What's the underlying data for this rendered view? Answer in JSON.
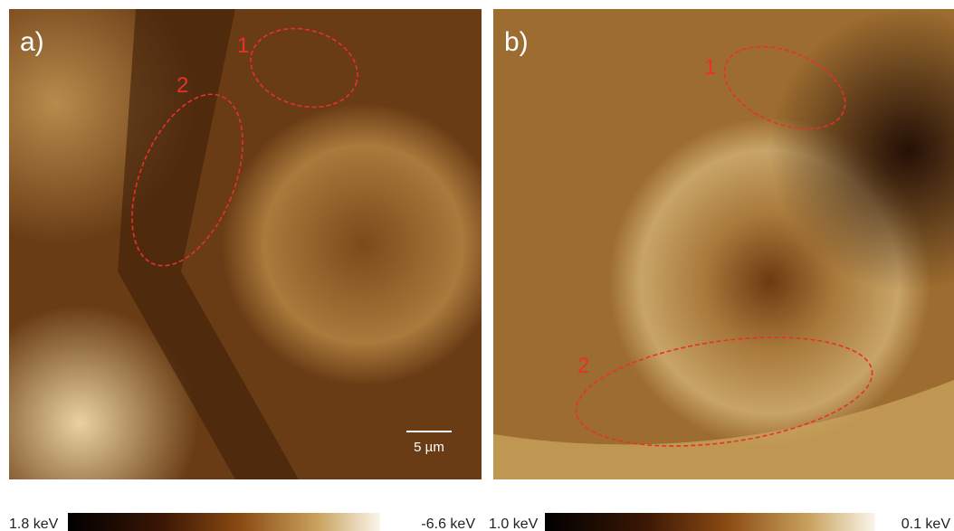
{
  "panels": [
    {
      "label": "a)",
      "markers": [
        "1",
        "2"
      ],
      "scale_bar": "5 µm",
      "colorbar": {
        "left_label": "1.8 keV",
        "right_label": "-6.6 keV"
      }
    },
    {
      "label": "b)",
      "markers": [
        "1",
        "2"
      ],
      "colorbar": {
        "left_label": "1.0 keV",
        "right_label": "0.1 keV"
      }
    }
  ]
}
